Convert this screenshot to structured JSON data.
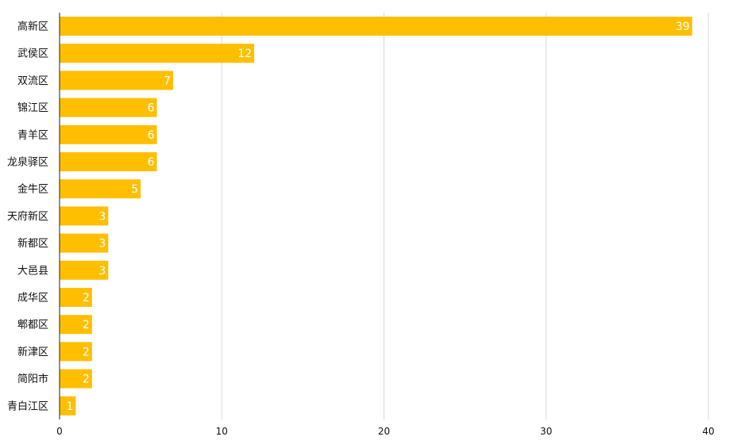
{
  "chart_data": {
    "type": "bar",
    "orientation": "horizontal",
    "categories": [
      "高新区",
      "武侯区",
      "双流区",
      "锦江区",
      "青羊区",
      "龙泉驿区",
      "金牛区",
      "天府新区",
      "新都区",
      "大邑县",
      "成华区",
      "郫都区",
      "新津区",
      "简阳市",
      "青白江区"
    ],
    "values": [
      39,
      12,
      7,
      6,
      6,
      6,
      5,
      3,
      3,
      3,
      2,
      2,
      2,
      2,
      1
    ],
    "x_ticks": [
      0,
      10,
      20,
      30,
      40
    ],
    "xlim": [
      0,
      40
    ],
    "grid": true,
    "data_labels": true,
    "colors": {
      "bar": "#FFBF00",
      "label": "#FFFFFF"
    }
  }
}
